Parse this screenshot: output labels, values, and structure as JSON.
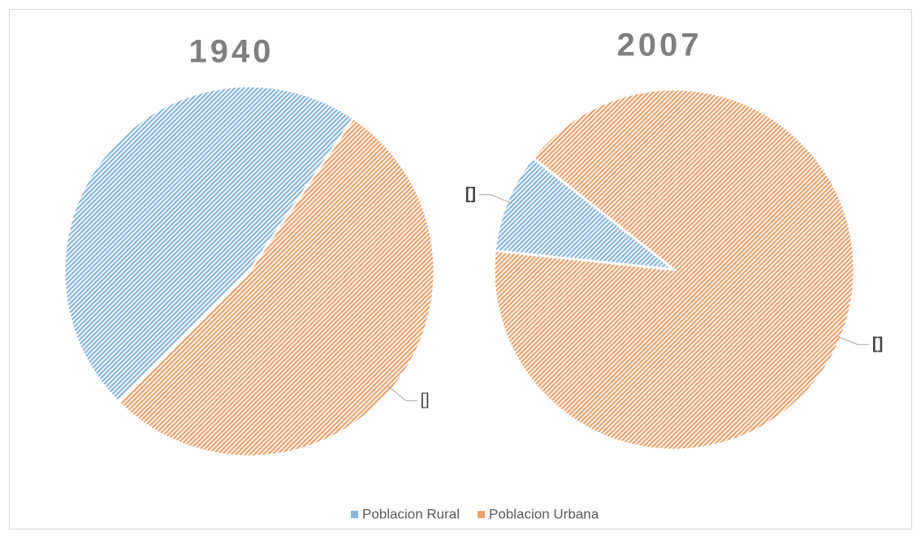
{
  "chart_data": [
    {
      "type": "pie",
      "title": "1940",
      "categories": [
        "Poblacion Rural",
        "Poblacion Urbana"
      ],
      "values": [
        47,
        53
      ],
      "value_labels": [
        null,
        "[]"
      ],
      "colors": [
        "#5b9bd5",
        "#ed7d31"
      ],
      "start_angle": 225,
      "legend": "bottom"
    },
    {
      "type": "pie",
      "title": "2007",
      "categories": [
        "Poblacion Rural",
        "Poblacion Urbana"
      ],
      "values": [
        9,
        91
      ],
      "value_labels": [
        "[]",
        "[]"
      ],
      "colors": [
        "#5b9bd5",
        "#ed7d31"
      ],
      "start_angle": 276,
      "legend": "bottom"
    }
  ]
}
